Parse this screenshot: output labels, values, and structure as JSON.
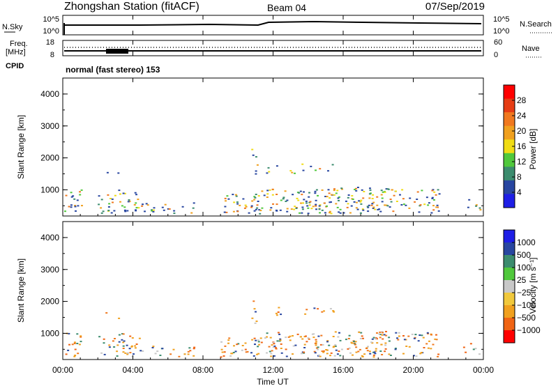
{
  "header": {
    "station": "Zhongshan Station (fitACF)",
    "beam": "Beam 04",
    "date": "07/Sep/2019"
  },
  "noise_panel": {
    "left_label": "N.Sky",
    "right_label": "N.Search",
    "y_top_label": "10^5",
    "y_bottom_label": "10^0",
    "right_top_label": "10^5",
    "right_bottom_label": "10^0"
  },
  "freq_panel": {
    "left_label_line1": "Freq.",
    "left_label_line2": "[MHz]",
    "left_top": "18",
    "left_bottom": "8",
    "right_label": "Nave",
    "right_top": "60",
    "right_bottom": "0",
    "cpid_label": "CPID"
  },
  "cpid_text": "normal (fast stereo) 153",
  "colors": {
    "power_scale": [
      "#1e1ee6",
      "#2846a0",
      "#3c8c6e",
      "#50c83c",
      "#f0dc14",
      "#f0a01e",
      "#f0781e",
      "#e63c14",
      "#ff0000"
    ],
    "velocity_scale": [
      "#ff0000",
      "#f06414",
      "#f0a01e",
      "#f0c83c",
      "#c8c8c8",
      "#50c83c",
      "#3c8c6e",
      "#2846a0",
      "#1e1ee6"
    ]
  },
  "chart_data": [
    {
      "type": "heatmap",
      "name": "power",
      "ylabel": "Slant Range [km]",
      "yticks": [
        "4000",
        "3000",
        "2000",
        "1000"
      ],
      "ylim": [
        180,
        4500
      ],
      "colorbar": {
        "label": "Power [dB]",
        "ticks": [
          "28",
          "24",
          "20",
          "16",
          "12",
          "8",
          "4"
        ]
      }
    },
    {
      "type": "heatmap",
      "name": "velocity",
      "ylabel": "Slant Range [km]",
      "yticks": [
        "4000",
        "3000",
        "2000",
        "1000"
      ],
      "ylim": [
        180,
        4500
      ],
      "xlabel": "Time UT",
      "xticks": [
        "00:00",
        "04:00",
        "08:00",
        "12:00",
        "16:00",
        "20:00",
        "00:00"
      ],
      "colorbar": {
        "label": "Velocity [m s⁻¹]",
        "ticks": [
          "1000",
          "500",
          "100",
          "25",
          "−25",
          "−100",
          "−500",
          "−1000"
        ]
      }
    }
  ]
}
